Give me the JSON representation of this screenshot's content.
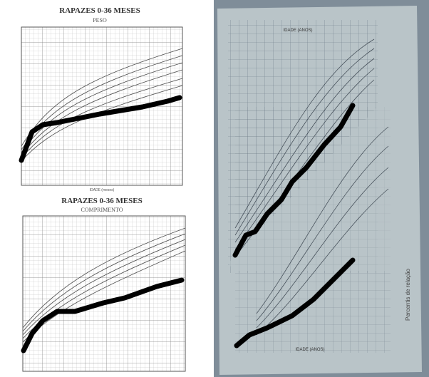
{
  "left": {
    "top_chart": {
      "title": "RAPAZES 0-36 MESES",
      "subtitle": "PESO",
      "x_label": "IDADE (meses)"
    },
    "bottom_chart": {
      "title": "RAPAZES 0-36 MESES",
      "subtitle": "COMPRIMENTO"
    }
  },
  "right": {
    "top_label": "IDADE (ANOS)",
    "bottom_label": "IDADE (ANOS)",
    "side_label": "Percentis de relação"
  }
}
